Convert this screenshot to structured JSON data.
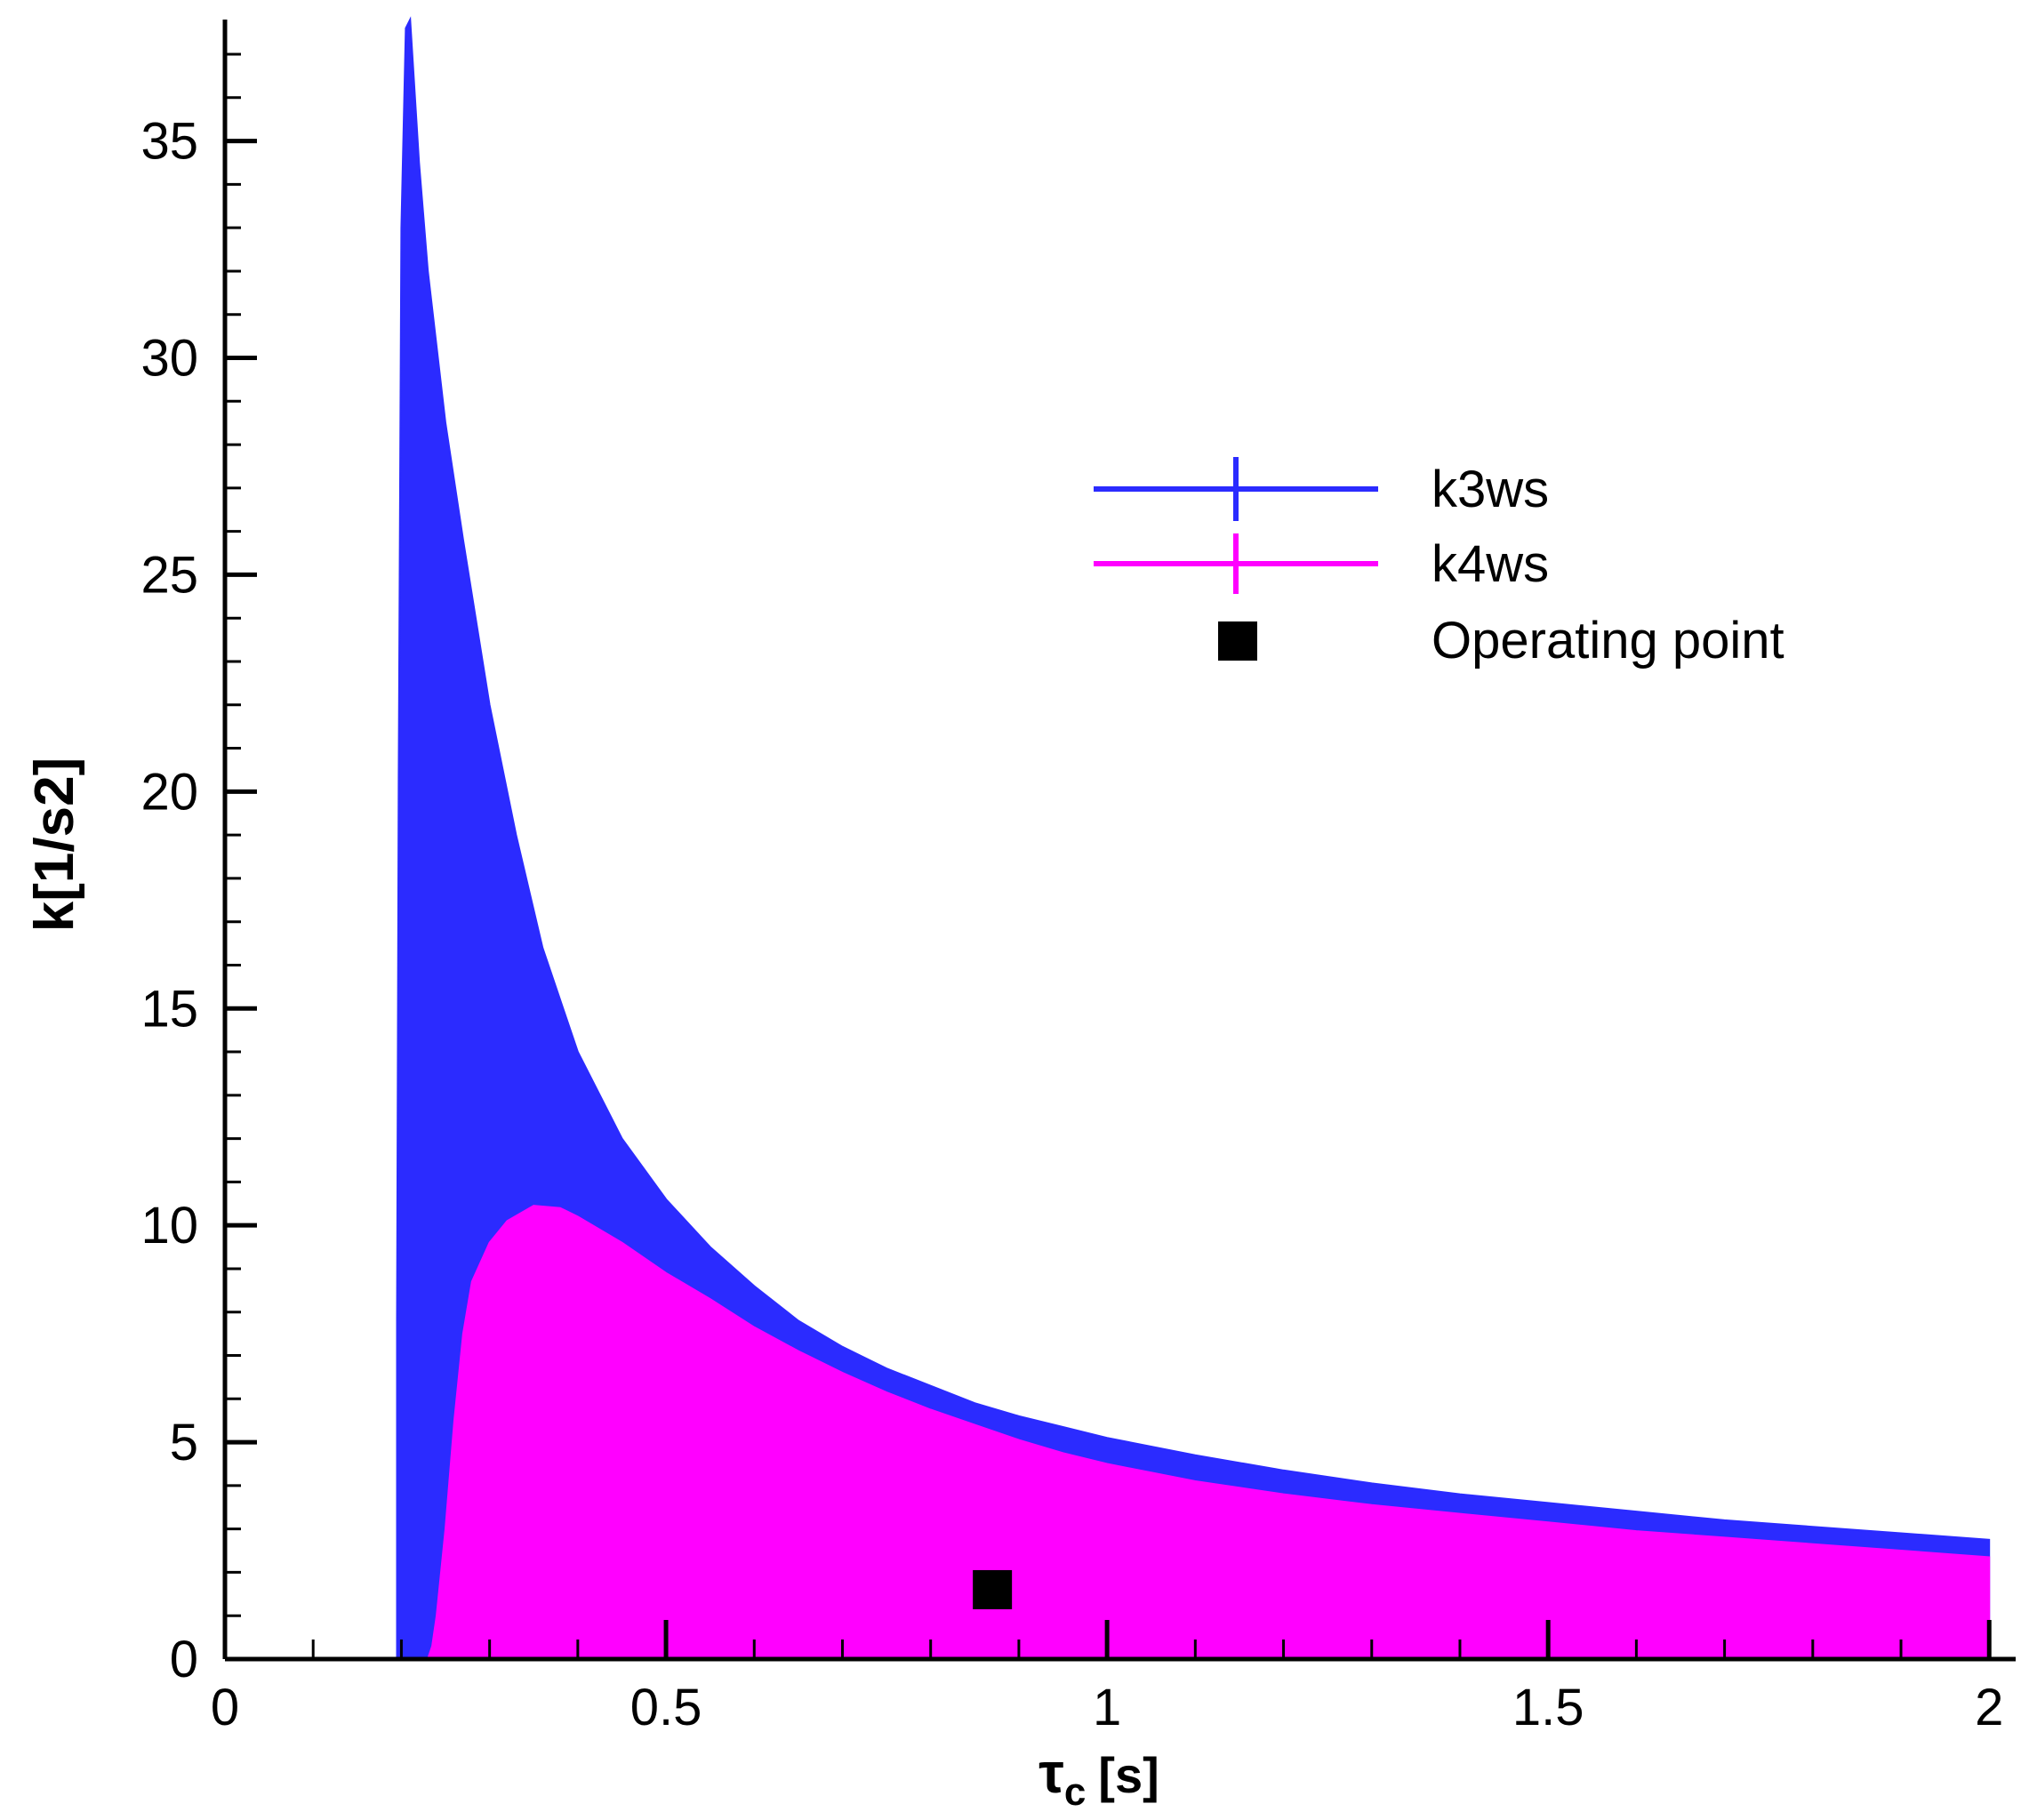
{
  "chart_data": {
    "type": "area",
    "xlabel": {
      "symbol": "τ",
      "subscript": "c",
      "unit": "[s]"
    },
    "ylabel": "k[1/s2]",
    "xlim": [
      0,
      2.03
    ],
    "ylim": [
      0,
      37.8
    ],
    "x_ticks": [
      0,
      0.5,
      1,
      1.5,
      2
    ],
    "x_tick_labels": [
      "0",
      "0.5",
      "1",
      "1.5",
      "2"
    ],
    "x_minor_step": 0.1,
    "y_ticks": [
      0,
      5,
      10,
      15,
      20,
      25,
      30,
      35
    ],
    "y_tick_labels": [
      "0",
      "5",
      "10",
      "15",
      "20",
      "25",
      "30",
      "35"
    ],
    "y_minor_step": 1,
    "grid": false,
    "legend_position": "top-right",
    "series": [
      {
        "name": "k3ws",
        "color": "#2b2bff",
        "x": [
          0.195,
          0.197,
          0.2,
          0.205,
          0.21,
          0.22,
          0.23,
          0.25,
          0.27,
          0.3,
          0.33,
          0.36,
          0.4,
          0.45,
          0.5,
          0.55,
          0.6,
          0.65,
          0.7,
          0.75,
          0.8,
          0.85,
          0.9,
          0.95,
          1.0,
          1.1,
          1.2,
          1.3,
          1.4,
          1.5,
          1.6,
          1.7,
          1.8,
          1.9,
          2.0
        ],
        "y": [
          7.8,
          20.3,
          33.0,
          37.6,
          37.8,
          34.5,
          32.0,
          28.5,
          25.8,
          22.0,
          19.0,
          16.4,
          14.0,
          12.0,
          10.6,
          9.5,
          8.6,
          7.8,
          7.2,
          6.7,
          6.3,
          5.9,
          5.6,
          5.35,
          5.1,
          4.7,
          4.35,
          4.05,
          3.8,
          3.6,
          3.4,
          3.2,
          3.05,
          2.9,
          2.75
        ]
      },
      {
        "name": "k4ws",
        "color": "#ff00ff",
        "x": [
          0.23,
          0.235,
          0.24,
          0.25,
          0.26,
          0.27,
          0.28,
          0.3,
          0.32,
          0.35,
          0.38,
          0.4,
          0.45,
          0.5,
          0.55,
          0.6,
          0.65,
          0.7,
          0.75,
          0.8,
          0.85,
          0.9,
          0.95,
          1.0,
          1.1,
          1.2,
          1.3,
          1.4,
          1.5,
          1.6,
          1.7,
          1.8,
          1.9,
          2.0
        ],
        "y": [
          0.0,
          0.3,
          1.0,
          3.0,
          5.5,
          7.5,
          8.7,
          9.6,
          10.1,
          10.45,
          10.4,
          10.2,
          9.6,
          8.9,
          8.3,
          7.65,
          7.1,
          6.6,
          6.15,
          5.75,
          5.4,
          5.05,
          4.75,
          4.5,
          4.1,
          3.8,
          3.55,
          3.35,
          3.15,
          2.95,
          2.8,
          2.65,
          2.5,
          2.35
        ]
      }
    ],
    "points": [
      {
        "name": "Operating point",
        "x": 0.87,
        "y": 1.6,
        "color": "#000000",
        "marker": "square"
      }
    ]
  },
  "legend": {
    "items": [
      {
        "label": "k3ws",
        "color": "#2b2bff",
        "kind": "line-with-tick"
      },
      {
        "label": "k4ws",
        "color": "#ff00ff",
        "kind": "line-with-tick"
      },
      {
        "label": "Operating point",
        "color": "#000000",
        "kind": "square"
      }
    ]
  }
}
